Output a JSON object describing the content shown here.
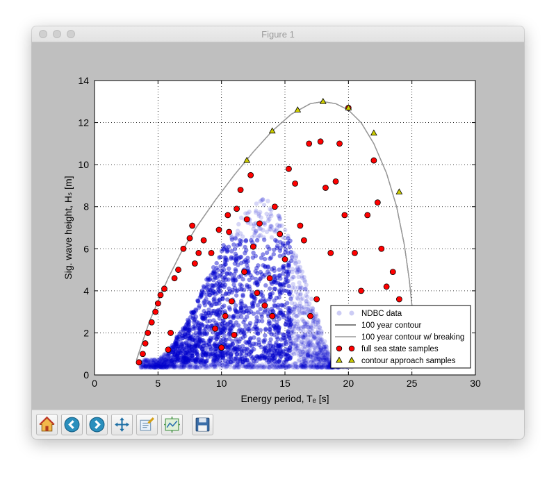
{
  "window": {
    "title": "Figure 1"
  },
  "toolbar": {
    "buttons": [
      {
        "name": "home-button",
        "icon": "home-icon"
      },
      {
        "name": "back-button",
        "icon": "back-arrow-icon"
      },
      {
        "name": "forward-button",
        "icon": "forward-arrow-icon"
      },
      {
        "name": "pan-button",
        "icon": "move-icon"
      },
      {
        "name": "zoom-button",
        "icon": "zoom-rect-icon"
      },
      {
        "name": "configure-subplots-button",
        "icon": "subplots-icon"
      },
      {
        "name": "save-button",
        "icon": "floppy-disk-icon"
      }
    ]
  },
  "chart_data": {
    "type": "scatter",
    "xlabel": "Energy period, Tₑ [s]",
    "ylabel": "Sig. wave height, Hₛ [m]",
    "xlim": [
      0,
      30
    ],
    "ylim": [
      0,
      14
    ],
    "xticks": [
      "0",
      "5",
      "10",
      "15",
      "20",
      "25",
      "30"
    ],
    "yticks": [
      "0",
      "2",
      "4",
      "6",
      "8",
      "10",
      "12",
      "14"
    ],
    "grid": true,
    "legend_position": "lower-right",
    "colors": {
      "ndbc": "#0000cc",
      "contour": "#000000",
      "contour_breaking": "#999999",
      "full_samples": "#ff0000",
      "approach_samples": "#cccc00"
    },
    "series": [
      {
        "name": "NDBC data",
        "kind": "scatter-cloud",
        "note_core": [
          [
            4.5,
            0.6
          ],
          [
            6,
            1.0
          ],
          [
            8,
            1.5
          ],
          [
            10,
            2.5
          ],
          [
            12,
            3.5
          ],
          [
            13,
            4.5
          ],
          [
            14,
            3.0
          ],
          [
            16,
            2.0
          ],
          [
            17,
            1.0
          ],
          [
            18,
            0.8
          ]
        ]
      },
      {
        "name": "100 year contour",
        "kind": "line",
        "x": [
          3.3,
          3.8,
          4.3,
          5.0,
          5.8,
          6.8,
          8.0,
          9.5,
          11.0,
          12.5,
          14.0,
          15.5,
          17.0,
          18.0,
          19.0,
          20.0,
          21.0,
          22.0,
          23.0,
          23.8,
          24.4,
          24.8,
          25.0
        ],
        "y": [
          0.7,
          1.6,
          2.5,
          3.5,
          4.6,
          5.8,
          7.0,
          8.3,
          9.5,
          10.6,
          11.6,
          12.4,
          12.9,
          13.0,
          12.9,
          12.6,
          12.0,
          11.0,
          9.6,
          8.0,
          6.2,
          4.5,
          3.3
        ]
      },
      {
        "name": "100 year contour w/ breaking",
        "kind": "line",
        "x": [
          3.3,
          3.8,
          4.3,
          5.0,
          5.8,
          6.8,
          8.0,
          9.5,
          11.0,
          12.5,
          14.0,
          15.5,
          17.0,
          18.0,
          19.0,
          20.0,
          21.0,
          22.0,
          23.0,
          23.8,
          24.4,
          24.8,
          25.0
        ],
        "y": [
          0.7,
          1.6,
          2.5,
          3.5,
          4.6,
          5.8,
          7.0,
          8.3,
          9.5,
          10.6,
          11.6,
          12.4,
          12.9,
          13.0,
          12.9,
          12.6,
          12.0,
          11.0,
          9.6,
          8.0,
          6.2,
          4.5,
          3.3
        ]
      },
      {
        "name": "full sea state samples",
        "kind": "scatter",
        "points": [
          [
            3.5,
            0.6
          ],
          [
            3.8,
            1.0
          ],
          [
            4.0,
            1.5
          ],
          [
            4.2,
            2.0
          ],
          [
            4.5,
            2.5
          ],
          [
            4.8,
            3.0
          ],
          [
            5.0,
            3.4
          ],
          [
            5.2,
            3.8
          ],
          [
            5.5,
            4.1
          ],
          [
            5.8,
            1.2
          ],
          [
            6.0,
            2.0
          ],
          [
            6.3,
            4.6
          ],
          [
            6.6,
            5.0
          ],
          [
            7.0,
            6.0
          ],
          [
            7.5,
            6.5
          ],
          [
            7.7,
            7.1
          ],
          [
            7.9,
            5.3
          ],
          [
            8.2,
            5.8
          ],
          [
            8.6,
            6.4
          ],
          [
            9.2,
            5.8
          ],
          [
            9.5,
            2.2
          ],
          [
            9.8,
            6.9
          ],
          [
            10.0,
            1.3
          ],
          [
            10.3,
            2.8
          ],
          [
            10.5,
            7.6
          ],
          [
            10.6,
            6.8
          ],
          [
            10.8,
            3.5
          ],
          [
            11.0,
            1.9
          ],
          [
            11.2,
            7.9
          ],
          [
            11.5,
            8.8
          ],
          [
            11.8,
            4.9
          ],
          [
            12.0,
            7.4
          ],
          [
            12.3,
            9.5
          ],
          [
            12.5,
            6.1
          ],
          [
            12.8,
            3.9
          ],
          [
            13.0,
            7.2
          ],
          [
            13.4,
            3.3
          ],
          [
            13.8,
            4.6
          ],
          [
            14.0,
            2.8
          ],
          [
            14.2,
            8.0
          ],
          [
            14.6,
            6.7
          ],
          [
            15.0,
            5.5
          ],
          [
            15.3,
            9.8
          ],
          [
            15.8,
            9.1
          ],
          [
            16.2,
            7.1
          ],
          [
            16.5,
            6.4
          ],
          [
            16.9,
            11.0
          ],
          [
            17.0,
            2.8
          ],
          [
            17.5,
            3.6
          ],
          [
            17.8,
            11.1
          ],
          [
            18.2,
            8.9
          ],
          [
            18.6,
            5.8
          ],
          [
            19.0,
            9.2
          ],
          [
            19.3,
            11.0
          ],
          [
            19.7,
            7.6
          ],
          [
            20.0,
            12.7
          ],
          [
            20.5,
            5.8
          ],
          [
            21.0,
            4.0
          ],
          [
            21.5,
            7.6
          ],
          [
            22.0,
            10.2
          ],
          [
            22.3,
            8.2
          ],
          [
            22.6,
            6.0
          ],
          [
            23.0,
            4.2
          ],
          [
            23.5,
            4.9
          ],
          [
            24.0,
            3.6
          ]
        ]
      },
      {
        "name": "contour approach samples",
        "kind": "scatter",
        "points": [
          [
            12.0,
            10.2
          ],
          [
            14.0,
            11.6
          ],
          [
            16.0,
            12.6
          ],
          [
            18.0,
            13.0
          ],
          [
            20.0,
            12.7
          ],
          [
            22.0,
            11.5
          ],
          [
            24.0,
            8.7
          ]
        ]
      }
    ]
  }
}
